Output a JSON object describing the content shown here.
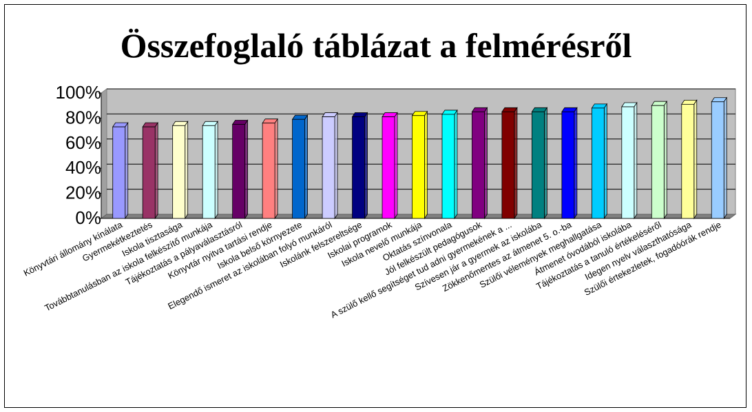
{
  "chart_data": {
    "type": "bar",
    "title": "Összefoglaló táblázat a felmérésről",
    "xlabel": "",
    "ylabel": "",
    "ylim": [
      0,
      100
    ],
    "yticks": [
      "0%",
      "20%",
      "40%",
      "60%",
      "80%",
      "100%"
    ],
    "ytick_values": [
      0,
      20,
      40,
      60,
      80,
      100
    ],
    "grid": true,
    "plot_background": "#c0c0c0",
    "categories": [
      "Könyvtári állomány kínálata",
      "Gyermekétkeztetés",
      "Iskola tisztasága",
      "Továbbtanulásban az iskola felkészítő munkája",
      "Tájékoztatás a pályaválasztásról",
      "Könyvtár nyitva tartási rendje",
      "Iskola belső környezete",
      "Elegendő ismeret az iskolában folyó munkáról",
      "Iskolánk felszereltsége",
      "Iskolai programok",
      "Iskola nevelő munkája",
      "Oktatás színvonala",
      "Jól felkészült pedagógusok",
      "A szülő kellő segítséget tud adni gyermekének  a ...",
      "Szívesen jár a gyermek az iskolába",
      "Zökkenőmentes az átmenet 5. o.-ba",
      "Szülői vélemények meghallgatása",
      "Átmenet óvodából iskolába",
      "Tájékoztatás a tanuló értékeléséről",
      "Idegen nyelv választhatósága",
      "Szülői értekezletek, fogadóórák rendje"
    ],
    "values": [
      73,
      73,
      74,
      74,
      75,
      76,
      79,
      81,
      81,
      81,
      82,
      83,
      85,
      85,
      85,
      85,
      88,
      89,
      90,
      91,
      93
    ],
    "colors": [
      "#9999ff",
      "#993366",
      "#ffffcc",
      "#ccffff",
      "#660066",
      "#ff8080",
      "#0066cc",
      "#ccccff",
      "#000080",
      "#ff00ff",
      "#ffff00",
      "#00ffff",
      "#800080",
      "#800000",
      "#008080",
      "#0000ff",
      "#00ccff",
      "#ccffff",
      "#ccffcc",
      "#ffff99",
      "#99ccff"
    ]
  }
}
